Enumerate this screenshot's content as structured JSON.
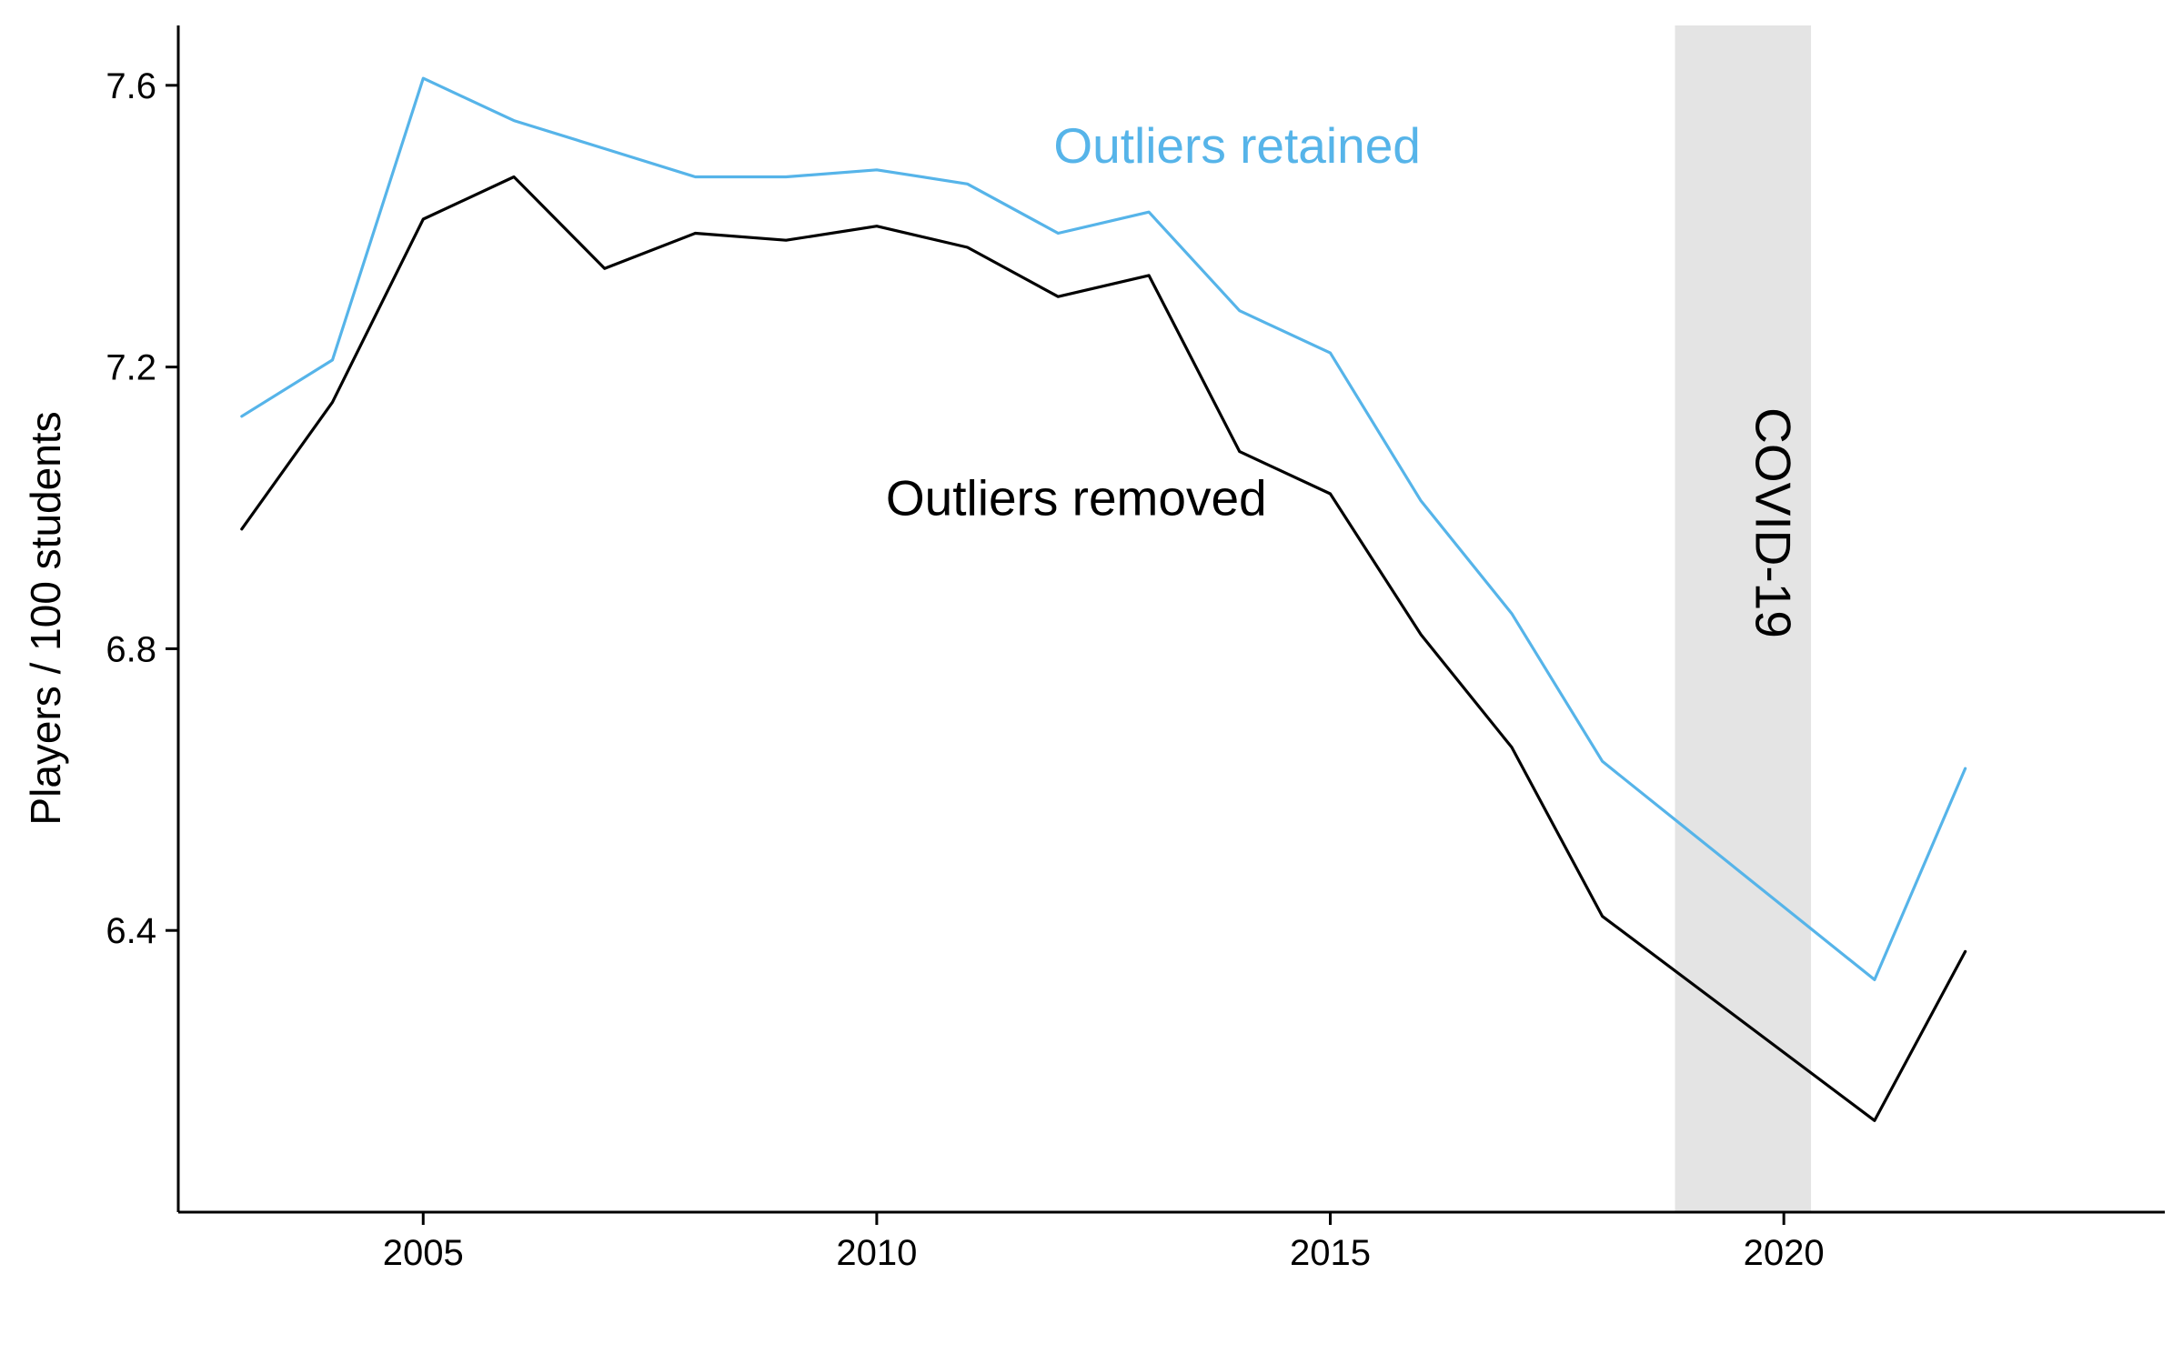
{
  "chart_data": {
    "type": "line",
    "title": "",
    "xlabel": "",
    "ylabel": "Players / 100 students",
    "xlim": [
      2002.3,
      2024.2
    ],
    "ylim": [
      6.0,
      7.685
    ],
    "x_ticks": [
      2005,
      2010,
      2015,
      2020
    ],
    "x_tick_labels": [
      "2005",
      "2010",
      "2015",
      "2020"
    ],
    "y_ticks": [
      6.4,
      6.8,
      7.2,
      7.6
    ],
    "y_tick_labels": [
      "6.4",
      "6.8",
      "7.2",
      "7.6"
    ],
    "grid": false,
    "x": [
      2003,
      2004,
      2005,
      2006,
      2007,
      2008,
      2009,
      2010,
      2011,
      2012,
      2013,
      2014,
      2015,
      2016,
      2017,
      2018,
      2021,
      2022
    ],
    "series": [
      {
        "name": "Outliers retained",
        "color": "#56B4E9",
        "values": [
          7.13,
          7.21,
          7.61,
          7.55,
          7.51,
          7.47,
          7.47,
          7.48,
          7.46,
          7.39,
          7.42,
          7.28,
          7.22,
          7.01,
          6.85,
          6.64,
          6.33,
          6.63
        ]
      },
      {
        "name": "Outliers removed",
        "color": "#000000",
        "values": [
          6.97,
          7.15,
          7.41,
          7.47,
          7.34,
          7.39,
          7.38,
          7.4,
          7.37,
          7.3,
          7.33,
          7.08,
          7.02,
          6.82,
          6.66,
          6.42,
          6.13,
          6.37
        ]
      }
    ],
    "annotations": [
      {
        "label": "Outliers retained",
        "x": 2011.95,
        "y": 7.49,
        "color": "#56B4E9"
      },
      {
        "label": "Outliers removed",
        "x": 2010.1,
        "y": 6.99,
        "color": "#000000"
      }
    ],
    "shaded_regions": [
      {
        "label": "COVID-19",
        "x_start": 2018.8,
        "x_end": 2020.3,
        "color": "#E4E4E4"
      }
    ]
  }
}
